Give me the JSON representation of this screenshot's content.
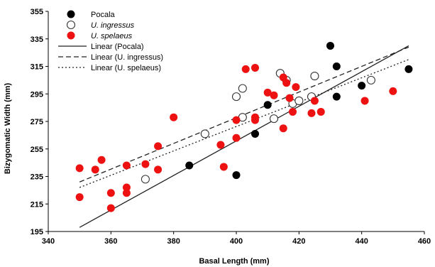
{
  "chart_data": {
    "type": "scatter",
    "xlabel": "Basal Length (mm)",
    "ylabel": "Bizygomatic Width (mm)",
    "xlim": [
      340,
      460
    ],
    "ylim": [
      195,
      355
    ],
    "xticks": [
      340,
      360,
      380,
      400,
      420,
      440,
      460
    ],
    "xtick_labels": [
      "340",
      "360",
      "380",
      "400",
      "420",
      "440",
      "460"
    ],
    "yticks": [
      195,
      215,
      235,
      255,
      275,
      295,
      315,
      335,
      355
    ],
    "ytick_labels": [
      "195",
      "215",
      "235",
      "255",
      "275",
      "295",
      "315",
      "335",
      "355"
    ],
    "grid": false,
    "legend_position": "top-left",
    "legend": [
      {
        "label": "Pocala",
        "style": "filled-black",
        "italic": false
      },
      {
        "label": "U. ingressus",
        "style": "open-circle",
        "italic": true
      },
      {
        "label": "U. spelaeus",
        "style": "filled-red",
        "italic": true
      },
      {
        "label": "Linear   (Pocala)",
        "style": "solid",
        "italic": false
      },
      {
        "label": "Linear   (U. ingressus)",
        "style": "dashed",
        "italic": false
      },
      {
        "label": "Linear   (U. spelaeus)",
        "style": "dotted",
        "italic": false
      }
    ],
    "series": [
      {
        "name": "Pocala",
        "color": "#000000",
        "marker": "filled",
        "points": [
          [
            385,
            243
          ],
          [
            400,
            236
          ],
          [
            406,
            266
          ],
          [
            410,
            287
          ],
          [
            430,
            330
          ],
          [
            432,
            315
          ],
          [
            432,
            293
          ],
          [
            440,
            301
          ],
          [
            455,
            313
          ]
        ]
      },
      {
        "name": "U. ingressus",
        "color": "#000000",
        "marker": "open",
        "points": [
          [
            371,
            233
          ],
          [
            390,
            266
          ],
          [
            400,
            293
          ],
          [
            402,
            299
          ],
          [
            402,
            278
          ],
          [
            412,
            277
          ],
          [
            414,
            310
          ],
          [
            416,
            305
          ],
          [
            418,
            288
          ],
          [
            420,
            290
          ],
          [
            424,
            293
          ],
          [
            425,
            308
          ],
          [
            443,
            305
          ]
        ]
      },
      {
        "name": "U. spelaeus",
        "color": "#ee1111",
        "marker": "filled",
        "points": [
          [
            350,
            241
          ],
          [
            350,
            220
          ],
          [
            355,
            240
          ],
          [
            357,
            247
          ],
          [
            360,
            223
          ],
          [
            360,
            212
          ],
          [
            365,
            243
          ],
          [
            365,
            227
          ],
          [
            365,
            223
          ],
          [
            371,
            244
          ],
          [
            375,
            257
          ],
          [
            375,
            240
          ],
          [
            380,
            278
          ],
          [
            395,
            258
          ],
          [
            396,
            242
          ],
          [
            400,
            276
          ],
          [
            400,
            263
          ],
          [
            403,
            313
          ],
          [
            406,
            314
          ],
          [
            406,
            278
          ],
          [
            406,
            276
          ],
          [
            410,
            296
          ],
          [
            412,
            294
          ],
          [
            415,
            307
          ],
          [
            415,
            270
          ],
          [
            416,
            303
          ],
          [
            417,
            292
          ],
          [
            418,
            282
          ],
          [
            419,
            300
          ],
          [
            424,
            281
          ],
          [
            425,
            290
          ],
          [
            427,
            282
          ],
          [
            441,
            290
          ],
          [
            450,
            297
          ]
        ]
      }
    ],
    "trendlines": [
      {
        "name": "Linear (Pocala)",
        "style": "solid",
        "from": [
          350,
          198
        ],
        "to": [
          455,
          330
        ]
      },
      {
        "name": "Linear (U. ingressus)",
        "style": "dashed",
        "from": [
          350,
          231
        ],
        "to": [
          455,
          329
        ]
      },
      {
        "name": "Linear (U. spelaeus)",
        "style": "dotted",
        "from": [
          350,
          227
        ],
        "to": [
          455,
          320
        ]
      }
    ]
  }
}
